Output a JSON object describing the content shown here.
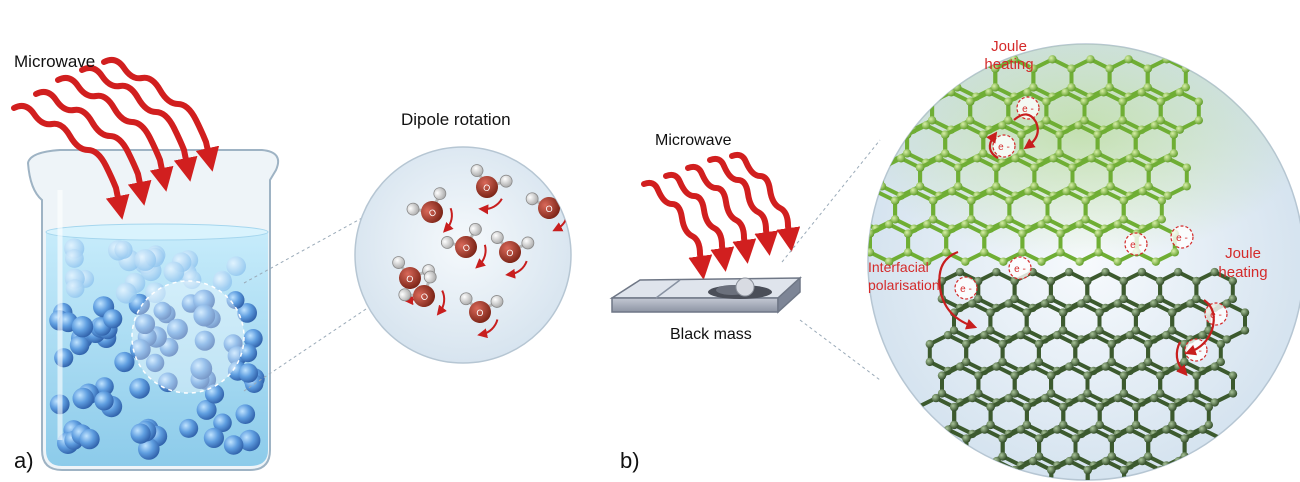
{
  "panel_a": {
    "microwave_label": "Microwave",
    "zoom_title": "Dipole rotation",
    "panel_letter": "a)",
    "molecule_atom_o": "O",
    "molecule_atom_h": "H"
  },
  "panel_b": {
    "microwave_label": "Microwave",
    "sample_label": "Black mass",
    "panel_letter": "b)",
    "joule_heating_top": "Joule heating",
    "joule_heating_bottom": "Joule heating",
    "interfacial_polarisation": "Interfacial polarisation",
    "electron_symbol": "e -"
  },
  "colors": {
    "wave_red": "#d11f1f",
    "annotation_red": "#d42a2a",
    "water": "#8fd0ee",
    "sphere_blue": "#4f8fd6",
    "graphene_light": "#7dbd3a",
    "graphene_dark": "#3f5e30",
    "lens_fill": "#e3edf6"
  },
  "icons": [
    "wave-arrow-icon",
    "beaker-icon",
    "water-molecule-icon",
    "rotation-arrow-icon",
    "graphene-sheet-icon",
    "electron-icon",
    "sample-tray-icon"
  ]
}
